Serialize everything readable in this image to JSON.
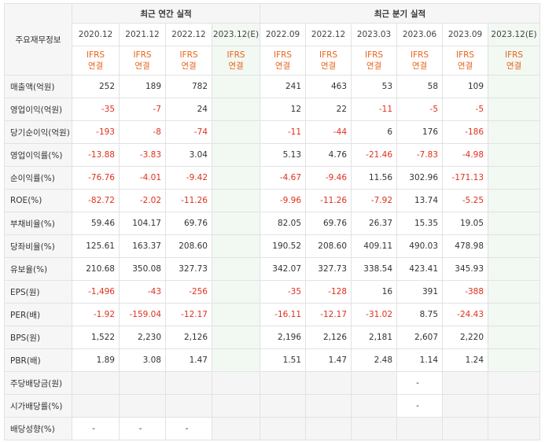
{
  "header": {
    "row_label": "주요재무정보",
    "annual_title": "최근 연간 실적",
    "quarter_title": "최근 분기 실적"
  },
  "annual_periods": [
    "2020.12",
    "2021.12",
    "2022.12",
    "2023.12(E)"
  ],
  "quarter_periods": [
    "2022.09",
    "2022.12",
    "2023.03",
    "2023.06",
    "2023.09",
    "2023.12(E)"
  ],
  "types": [
    "IFRS 연결",
    "IFRS 연결",
    "IFRS 연결",
    "IFRS 연결",
    "IFRS 연결",
    "IFRS 연결",
    "IFRS 연결",
    "IFRS 연결",
    "IFRS 연결",
    "IFRS 연결"
  ],
  "rows": [
    {
      "label": "매출액(억원)",
      "values": [
        "252",
        "189",
        "782",
        "",
        "241",
        "463",
        "53",
        "58",
        "109",
        ""
      ]
    },
    {
      "label": "영업이익(억원)",
      "values": [
        "-35",
        "-7",
        "24",
        "",
        "12",
        "22",
        "-11",
        "-5",
        "-5",
        ""
      ]
    },
    {
      "label": "당기순이익(억원)",
      "values": [
        "-193",
        "-8",
        "-74",
        "",
        "-11",
        "-44",
        "6",
        "176",
        "-186",
        ""
      ]
    },
    {
      "label": "영업이익률(%)",
      "values": [
        "-13.88",
        "-3.83",
        "3.04",
        "",
        "5.13",
        "4.76",
        "-21.46",
        "-7.83",
        "-4.98",
        ""
      ]
    },
    {
      "label": "순이익률(%)",
      "values": [
        "-76.76",
        "-4.01",
        "-9.42",
        "",
        "-4.67",
        "-9.46",
        "11.56",
        "302.96",
        "-171.13",
        ""
      ]
    },
    {
      "label": "ROE(%)",
      "values": [
        "-82.72",
        "-2.02",
        "-11.26",
        "",
        "-9.96",
        "-11.26",
        "-7.92",
        "13.74",
        "-5.25",
        ""
      ]
    },
    {
      "label": "부채비율(%)",
      "values": [
        "59.46",
        "104.17",
        "69.76",
        "",
        "82.05",
        "69.76",
        "26.37",
        "15.35",
        "19.05",
        ""
      ]
    },
    {
      "label": "당좌비율(%)",
      "values": [
        "125.61",
        "163.37",
        "208.60",
        "",
        "190.52",
        "208.60",
        "409.11",
        "490.03",
        "478.98",
        ""
      ]
    },
    {
      "label": "유보율(%)",
      "values": [
        "210.68",
        "350.08",
        "327.73",
        "",
        "342.07",
        "327.73",
        "338.54",
        "423.41",
        "345.93",
        ""
      ]
    },
    {
      "label": "EPS(원)",
      "values": [
        "-1,496",
        "-43",
        "-256",
        "",
        "-35",
        "-128",
        "16",
        "391",
        "-388",
        ""
      ]
    },
    {
      "label": "PER(배)",
      "values": [
        "-1.92",
        "-159.04",
        "-12.17",
        "",
        "-16.11",
        "-12.17",
        "-31.02",
        "8.75",
        "-24.43",
        ""
      ]
    },
    {
      "label": "BPS(원)",
      "values": [
        "1,522",
        "2,230",
        "2,126",
        "",
        "2,196",
        "2,126",
        "2,181",
        "2,607",
        "2,220",
        ""
      ]
    },
    {
      "label": "PBR(배)",
      "values": [
        "1.89",
        "3.08",
        "1.47",
        "",
        "1.51",
        "1.47",
        "2.48",
        "1.14",
        "1.24",
        ""
      ]
    },
    {
      "label": "주당배당금(원)",
      "values": [
        "",
        "",
        "",
        "",
        "",
        "",
        "",
        "-",
        "",
        ""
      ]
    },
    {
      "label": "시가배당률(%)",
      "values": [
        "",
        "",
        "",
        "",
        "",
        "",
        "",
        "-",
        "",
        ""
      ]
    },
    {
      "label": "배당성향(%)",
      "values": [
        "-",
        "-",
        "-",
        "",
        "",
        "",
        "",
        "",
        "",
        ""
      ]
    }
  ],
  "colors": {
    "type_text": "#e8641b",
    "negative_text": "#e0301e",
    "estimate_bg": "#f2f8f2",
    "label_bg": "#f6f6f6"
  }
}
